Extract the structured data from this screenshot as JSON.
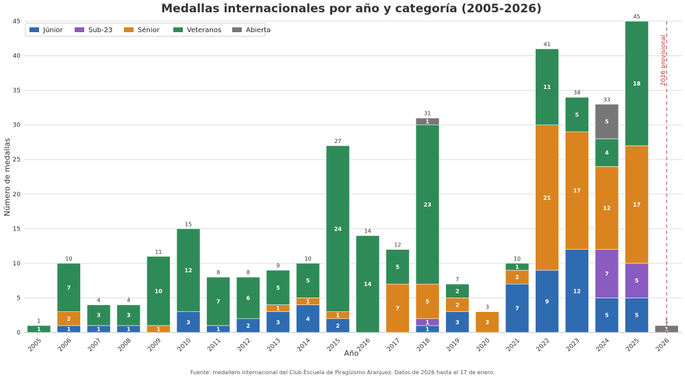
{
  "chart_data": {
    "type": "bar",
    "stacked": true,
    "title": "Medallas internacionales por año y categoría (2005-2026)",
    "xlabel": "Año",
    "ylabel": "Número de medallas",
    "ylim": [
      0,
      45
    ],
    "yticks": [
      0,
      5,
      10,
      15,
      20,
      25,
      30,
      35,
      40,
      45
    ],
    "grid": "horizontal",
    "legend_position": "top-left",
    "categories": [
      "2005",
      "2006",
      "2007",
      "2008",
      "2009",
      "2010",
      "2011",
      "2012",
      "2013",
      "2014",
      "2015",
      "2016",
      "2017",
      "2018",
      "2019",
      "2020",
      "2021",
      "2022",
      "2023",
      "2024",
      "2025",
      "2026"
    ],
    "series": [
      {
        "name": "Júnior",
        "color": "#2f6bb0",
        "values": [
          0,
          1,
          1,
          1,
          0,
          3,
          1,
          2,
          3,
          4,
          2,
          0,
          0,
          1,
          3,
          0,
          7,
          9,
          12,
          5,
          5,
          0
        ]
      },
      {
        "name": "Sub-23",
        "color": "#8a5bc0",
        "values": [
          0,
          0,
          0,
          0,
          0,
          0,
          0,
          0,
          0,
          0,
          0,
          0,
          0,
          1,
          0,
          0,
          0,
          0,
          0,
          7,
          5,
          0
        ]
      },
      {
        "name": "Sénior",
        "color": "#d9841f",
        "values": [
          0,
          2,
          0,
          0,
          1,
          0,
          0,
          0,
          1,
          1,
          1,
          0,
          7,
          5,
          2,
          3,
          2,
          21,
          17,
          12,
          17,
          0
        ]
      },
      {
        "name": "Veteranos",
        "color": "#2e8b57",
        "values": [
          1,
          7,
          3,
          3,
          10,
          12,
          7,
          6,
          5,
          5,
          24,
          14,
          5,
          23,
          2,
          0,
          1,
          11,
          5,
          4,
          18,
          0
        ]
      },
      {
        "name": "Abierta",
        "color": "#777777",
        "values": [
          0,
          0,
          0,
          0,
          0,
          0,
          0,
          0,
          0,
          0,
          0,
          0,
          0,
          1,
          0,
          0,
          0,
          0,
          0,
          5,
          0,
          1
        ]
      }
    ],
    "totals": [
      1,
      10,
      4,
      4,
      11,
      15,
      8,
      8,
      9,
      10,
      27,
      14,
      12,
      31,
      7,
      3,
      10,
      41,
      34,
      33,
      45,
      1
    ],
    "annotation": {
      "text": "2026 provisional",
      "category": "2026",
      "color": "#c0392b",
      "style": "dashed-vertical-line"
    },
    "source": "Fuente: medallero internacional del Club Escuela de Piragüismo Aranjuez. Datos de 2026 hasta el 17 de enero."
  }
}
